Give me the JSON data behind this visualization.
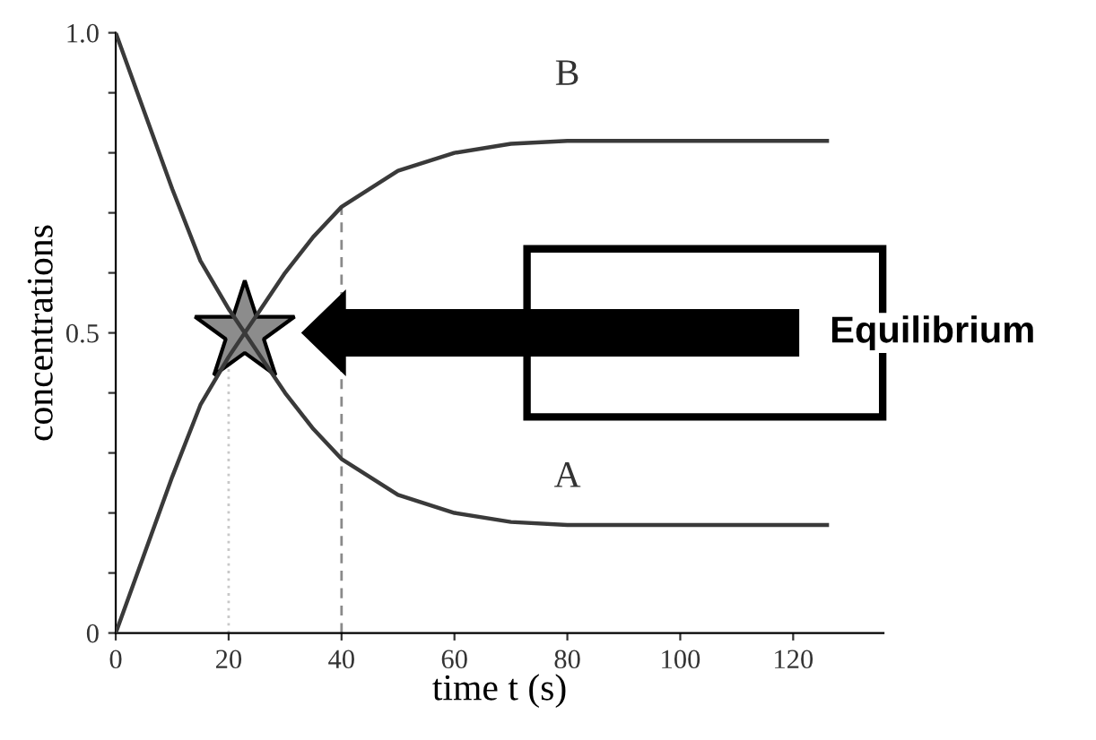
{
  "chart_data": {
    "type": "line",
    "xlabel": "time t (s)",
    "ylabel": "concentrations",
    "x": [
      0,
      5,
      10,
      15,
      20,
      25,
      30,
      35,
      40,
      50,
      60,
      70,
      80,
      90,
      100,
      110,
      126
    ],
    "series": [
      {
        "name": "A",
        "color": "#3a3a3a",
        "values": [
          1.0,
          0.87,
          0.74,
          0.62,
          0.54,
          0.47,
          0.4,
          0.34,
          0.29,
          0.23,
          0.2,
          0.185,
          0.18,
          0.18,
          0.18,
          0.18,
          0.18
        ]
      },
      {
        "name": "B",
        "color": "#3a3a3a",
        "values": [
          0,
          0.13,
          0.26,
          0.38,
          0.46,
          0.53,
          0.6,
          0.66,
          0.71,
          0.77,
          0.8,
          0.815,
          0.82,
          0.82,
          0.82,
          0.82,
          0.82
        ]
      }
    ],
    "xlim": [
      0,
      136
    ],
    "ylim": [
      0,
      1.0
    ],
    "xticks": [
      0,
      20,
      40,
      60,
      80,
      100,
      120
    ],
    "yticks": [
      0,
      {
        "value": 0.1,
        "label": null
      },
      {
        "value": 0.2,
        "label": null
      },
      {
        "value": 0.3,
        "label": null
      },
      {
        "value": 0.4,
        "label": null
      },
      0.5,
      {
        "value": 0.6,
        "label": null
      },
      {
        "value": 0.7,
        "label": null
      },
      {
        "value": 0.8,
        "label": null
      },
      {
        "value": 0.9,
        "label": null
      },
      {
        "value": 1.0,
        "label": "1.0"
      }
    ],
    "ref_lines": [
      {
        "axis": "x",
        "value": 20,
        "color": "#c8c8c8",
        "line_style": "dotted"
      },
      {
        "axis": "x",
        "value": 40,
        "color": "#8a8a8a",
        "line_style": "dashed"
      }
    ],
    "annotations": [
      "Equilibrium"
    ],
    "grid": false,
    "legend": false,
    "marker": "none",
    "line_style": "solid"
  }
}
